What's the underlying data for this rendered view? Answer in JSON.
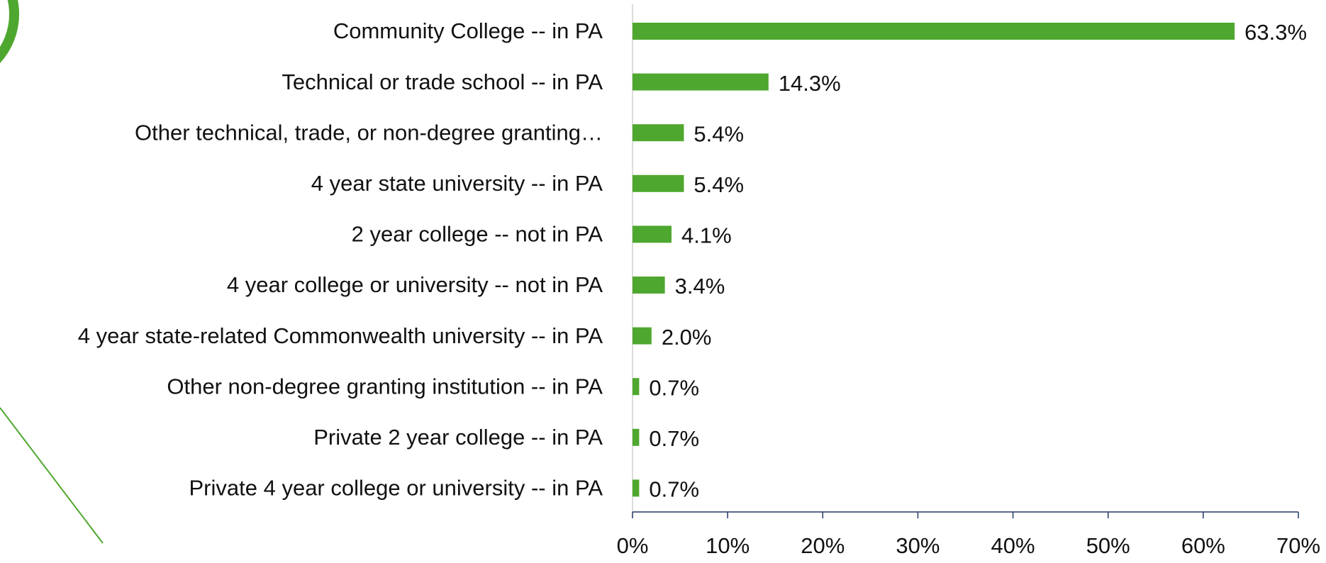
{
  "chart_data": {
    "type": "bar",
    "orientation": "horizontal",
    "categories": [
      "Community College -- in PA",
      "Technical or trade school -- in PA",
      "Other technical, trade, or non-degree granting…",
      "4 year state university -- in PA",
      "2 year college -- not in PA",
      "4 year college or university -- not in PA",
      "4 year state-related Commonwealth university -- in PA",
      "Other non-degree granting institution -- in PA",
      "Private 2 year college -- in PA",
      "Private 4 year college or university -- in PA"
    ],
    "values": [
      63.3,
      14.3,
      5.4,
      5.4,
      4.1,
      3.4,
      2.0,
      0.7,
      0.7,
      0.7
    ],
    "value_labels": [
      "63.3%",
      "14.3%",
      "5.4%",
      "5.4%",
      "4.1%",
      "3.4%",
      "2.0%",
      "0.7%",
      "0.7%",
      "0.7%"
    ],
    "color": "#4ea72e",
    "xlim": [
      0,
      70
    ],
    "xticks": [
      {
        "value": 0,
        "label": "0%"
      },
      {
        "value": 10,
        "label": "10%"
      },
      {
        "value": 20,
        "label": "20%"
      },
      {
        "value": 30,
        "label": "30%"
      },
      {
        "value": 40,
        "label": "40%"
      },
      {
        "value": 50,
        "label": "50%"
      },
      {
        "value": 60,
        "label": "60%"
      },
      {
        "value": 70,
        "label": "70%"
      }
    ]
  }
}
